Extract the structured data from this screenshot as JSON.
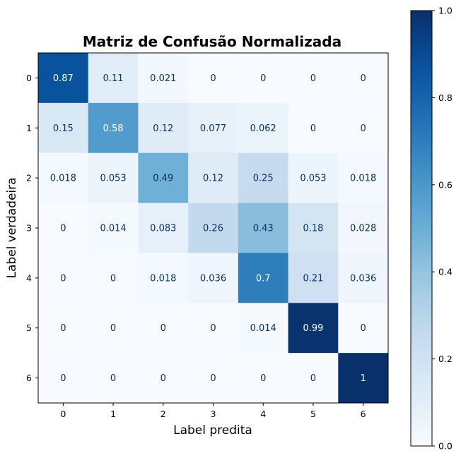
{
  "chart_data": {
    "type": "heatmap",
    "title": "Matriz de Confusão Normalizada",
    "xlabel": "Label predita",
    "ylabel": "Label verdadeira",
    "x_categories": [
      "0",
      "1",
      "2",
      "3",
      "4",
      "5",
      "6"
    ],
    "y_categories": [
      "0",
      "1",
      "2",
      "3",
      "4",
      "5",
      "6"
    ],
    "values": [
      [
        0.87,
        0.11,
        0.021,
        0,
        0,
        0,
        0
      ],
      [
        0.15,
        0.58,
        0.12,
        0.077,
        0.062,
        0,
        0
      ],
      [
        0.018,
        0.053,
        0.49,
        0.12,
        0.25,
        0.053,
        0.018
      ],
      [
        0,
        0.014,
        0.083,
        0.26,
        0.43,
        0.18,
        0.028
      ],
      [
        0,
        0,
        0.018,
        0.036,
        0.7,
        0.21,
        0.036
      ],
      [
        0,
        0,
        0,
        0,
        0.014,
        0.99,
        0
      ],
      [
        0,
        0,
        0,
        0,
        0,
        0,
        1
      ]
    ],
    "value_labels": [
      [
        "0.87",
        "0.11",
        "0.021",
        "0",
        "0",
        "0",
        "0"
      ],
      [
        "0.15",
        "0.58",
        "0.12",
        "0.077",
        "0.062",
        "0",
        "0"
      ],
      [
        "0.018",
        "0.053",
        "0.49",
        "0.12",
        "0.25",
        "0.053",
        "0.018"
      ],
      [
        "0",
        "0.014",
        "0.083",
        "0.26",
        "0.43",
        "0.18",
        "0.028"
      ],
      [
        "0",
        "0",
        "0.018",
        "0.036",
        "0.7",
        "0.21",
        "0.036"
      ],
      [
        "0",
        "0",
        "0",
        "0",
        "0.014",
        "0.99",
        "0"
      ],
      [
        "0",
        "0",
        "0",
        "0",
        "0",
        "0",
        "1"
      ]
    ],
    "colormap": "Blues",
    "colorbar": {
      "range": [
        0.0,
        1.0
      ],
      "ticks": [
        0.0,
        0.2,
        0.4,
        0.6,
        0.8,
        1.0
      ],
      "tick_labels": [
        "0.0",
        "0.2",
        "0.4",
        "0.6",
        "0.8",
        "1.0"
      ]
    },
    "grid": false
  }
}
